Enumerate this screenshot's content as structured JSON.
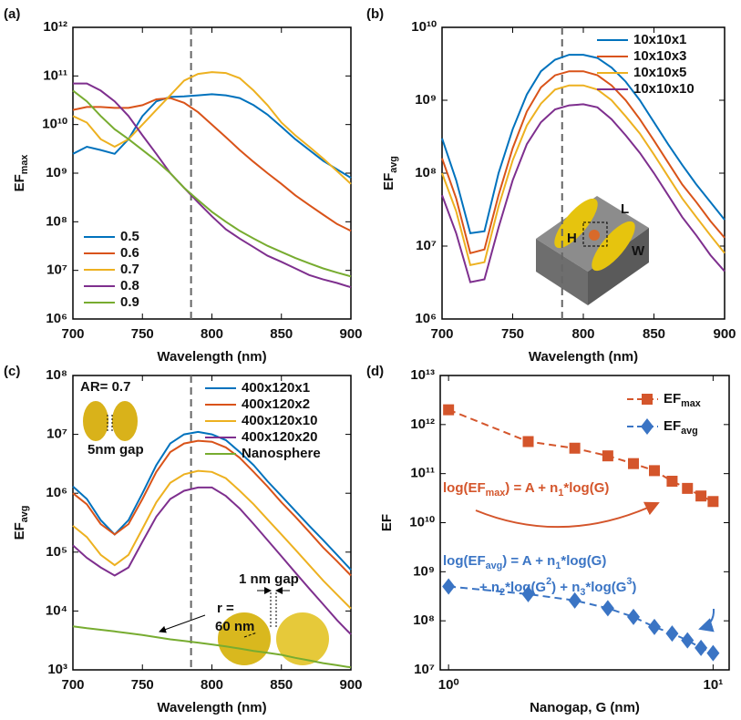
{
  "chart_data": [
    {
      "type": "line",
      "label": "(a)",
      "xlabel": "Wavelength (nm)",
      "ylabel": [
        "EF",
        {
          "sub": "max"
        }
      ],
      "ylog": true,
      "legend": "lower left",
      "xlim": [
        700,
        900
      ],
      "xticks": [
        700,
        750,
        800,
        850,
        900
      ],
      "ylim": [
        1000000.0,
        1000000000000.0
      ],
      "yticks": [
        {
          "value": 1000000.0,
          "label": "10⁶"
        },
        {
          "value": 10000000.0,
          "label": "10⁷"
        },
        {
          "value": 100000000.0,
          "label": "10⁸"
        },
        {
          "value": 1000000000.0,
          "label": "10⁹"
        },
        {
          "value": 10000000000.0,
          "label": "10¹⁰"
        },
        {
          "value": 100000000000.0,
          "label": "10¹¹"
        },
        {
          "value": 1000000000000.0,
          "label": "10¹²"
        }
      ],
      "vline": 785,
      "x": [
        700,
        710,
        720,
        730,
        740,
        750,
        760,
        770,
        780,
        790,
        800,
        810,
        820,
        830,
        840,
        850,
        860,
        870,
        880,
        890,
        900
      ],
      "series": [
        {
          "name": "0.5",
          "color": "#0072BD",
          "values": [
            2500000000.0,
            3500000000.0,
            3000000000.0,
            2500000000.0,
            5000000000.0,
            15000000000.0,
            30000000000.0,
            37000000000.0,
            38000000000.0,
            40000000000.0,
            42000000000.0,
            40000000000.0,
            35000000000.0,
            25000000000.0,
            16000000000.0,
            9000000000.0,
            5000000000.0,
            3000000000.0,
            1800000000.0,
            1200000000.0,
            800000000.0
          ]
        },
        {
          "name": "0.6",
          "color": "#D95319",
          "values": [
            20000000000.0,
            23000000000.0,
            23000000000.0,
            22000000000.0,
            22000000000.0,
            25000000000.0,
            33000000000.0,
            35000000000.0,
            28000000000.0,
            18000000000.0,
            10000000000.0,
            5500000000.0,
            3000000000.0,
            1700000000.0,
            1000000000.0,
            600000000.0,
            350000000.0,
            220000000.0,
            140000000.0,
            90000000.0,
            65000000.0
          ]
        },
        {
          "name": "0.7",
          "color": "#EDB120",
          "values": [
            15000000000.0,
            11000000000.0,
            5000000000.0,
            3500000000.0,
            5000000000.0,
            10000000000.0,
            20000000000.0,
            40000000000.0,
            80000000000.0,
            110000000000.0,
            120000000000.0,
            115000000000.0,
            90000000000.0,
            50000000000.0,
            25000000000.0,
            11000000000.0,
            6000000000.0,
            3500000000.0,
            2000000000.0,
            1100000000.0,
            600000000.0
          ]
        },
        {
          "name": "0.8",
          "color": "#7E2F8E",
          "values": [
            70000000000.0,
            70000000000.0,
            50000000000.0,
            30000000000.0,
            15000000000.0,
            6000000000.0,
            2500000000.0,
            1000000000.0,
            500000000.0,
            250000000.0,
            130000000.0,
            70000000.0,
            45000000.0,
            30000000.0,
            20000000.0,
            15000000.0,
            11000000.0,
            8000000.0,
            6500000.0,
            5500000.0,
            4500000.0
          ]
        },
        {
          "name": "0.9",
          "color": "#77AC30",
          "values": [
            50000000000.0,
            30000000000.0,
            15000000000.0,
            8000000000.0,
            5000000000.0,
            3000000000.0,
            1800000000.0,
            1000000000.0,
            500000000.0,
            280000000.0,
            160000000.0,
            100000000.0,
            65000000.0,
            45000000.0,
            32000000.0,
            24000000.0,
            18000000.0,
            14000000.0,
            11000000.0,
            9000000.0,
            7500000.0
          ]
        }
      ]
    },
    {
      "type": "line",
      "label": "(b)",
      "xlabel": "Wavelength (nm)",
      "ylabel": [
        "EF",
        {
          "sub": "avg"
        }
      ],
      "ylog": true,
      "legend": "upper right",
      "xlim": [
        700,
        900
      ],
      "xticks": [
        700,
        750,
        800,
        850,
        900
      ],
      "ylim": [
        1000000.0,
        10000000000.0
      ],
      "yticks": [
        {
          "value": 1000000.0,
          "label": "10⁶"
        },
        {
          "value": 10000000.0,
          "label": "10⁷"
        },
        {
          "value": 100000000.0,
          "label": "10⁸"
        },
        {
          "value": 1000000000.0,
          "label": "10⁹"
        },
        {
          "value": 10000000000.0,
          "label": "10¹⁰"
        }
      ],
      "vline": 785,
      "annotations": [
        "L",
        "H",
        "W"
      ],
      "x": [
        700,
        710,
        720,
        730,
        740,
        750,
        760,
        770,
        780,
        790,
        800,
        810,
        820,
        830,
        840,
        850,
        860,
        870,
        880,
        890,
        900
      ],
      "series": [
        {
          "name": "10x10x1",
          "color": "#0072BD",
          "values": [
            300000000.0,
            80000000.0,
            15000000.0,
            16000000.0,
            100000000.0,
            400000000.0,
            1200000000.0,
            2500000000.0,
            3600000000.0,
            4200000000.0,
            4200000000.0,
            3800000000.0,
            2800000000.0,
            1800000000.0,
            1000000000.0,
            500000000.0,
            250000000.0,
            130000000.0,
            70000000.0,
            40000000.0,
            23000000.0
          ]
        },
        {
          "name": "10x10x3",
          "color": "#D95319",
          "values": [
            160000000.0,
            45000000.0,
            8000000.0,
            9000000.0,
            50000000.0,
            220000000.0,
            700000000.0,
            1500000000.0,
            2200000000.0,
            2500000000.0,
            2500000000.0,
            2200000000.0,
            1600000000.0,
            1000000000.0,
            550000000.0,
            280000000.0,
            140000000.0,
            70000000.0,
            40000000.0,
            22000000.0,
            13000000.0
          ]
        },
        {
          "name": "10x10x5",
          "color": "#EDB120",
          "values": [
            100000000.0,
            30000000.0,
            5500000.0,
            6000000.0,
            35000000.0,
            150000000.0,
            450000000.0,
            900000000.0,
            1400000000.0,
            1600000000.0,
            1600000000.0,
            1400000000.0,
            1000000000.0,
            600000000.0,
            350000000.0,
            180000000.0,
            90000000.0,
            45000000.0,
            25000000.0,
            14000000.0,
            8000000.0
          ]
        },
        {
          "name": "10x10x10",
          "color": "#7E2F8E",
          "values": [
            50000000.0,
            15000000.0,
            3200000.0,
            3500000.0,
            18000000.0,
            80000000.0,
            250000000.0,
            500000000.0,
            750000000.0,
            850000000.0,
            880000000.0,
            800000000.0,
            550000000.0,
            330000000.0,
            190000000.0,
            100000000.0,
            50000000.0,
            25000000.0,
            14000000.0,
            7500000.0,
            4500000.0
          ]
        }
      ]
    },
    {
      "type": "line",
      "label": "(c)",
      "xlabel": "Wavelength (nm)",
      "ylabel": [
        "EF",
        {
          "sub": "avg"
        }
      ],
      "ylog": true,
      "legend": "upper right",
      "xlim": [
        700,
        900
      ],
      "xticks": [
        700,
        750,
        800,
        850,
        900
      ],
      "ylim": [
        1000.0,
        100000000.0
      ],
      "yticks": [
        {
          "value": 1000.0,
          "label": "10³"
        },
        {
          "value": 10000.0,
          "label": "10⁴"
        },
        {
          "value": 100000.0,
          "label": "10⁵"
        },
        {
          "value": 1000000.0,
          "label": "10⁶"
        },
        {
          "value": 10000000.0,
          "label": "10⁷"
        },
        {
          "value": 100000000.0,
          "label": "10⁸"
        }
      ],
      "vline": 785,
      "annotations": [
        "AR=  0.7",
        "5nm gap",
        "1 nm gap",
        "r =",
        "60 nm"
      ],
      "x": [
        700,
        710,
        720,
        730,
        740,
        750,
        760,
        770,
        780,
        790,
        800,
        810,
        820,
        830,
        840,
        850,
        860,
        870,
        880,
        890,
        900
      ],
      "series": [
        {
          "name": "400x120x1",
          "color": "#0072BD",
          "values": [
            1300000.0,
            800000.0,
            350000.0,
            200000.0,
            350000.0,
            1000000.0,
            3000000.0,
            7000000.0,
            10000000.0,
            11000000.0,
            10000000.0,
            8000000.0,
            5000000.0,
            3000000.0,
            1600000.0,
            900000.0,
            500000.0,
            280000.0,
            160000.0,
            90000.0,
            50000.0
          ]
        },
        {
          "name": "400x120x2",
          "color": "#D95319",
          "values": [
            1000000.0,
            650000.0,
            300000.0,
            200000.0,
            300000.0,
            800000.0,
            2300000.0,
            5000000.0,
            7000000.0,
            7800000.0,
            7500000.0,
            6000000.0,
            4000000.0,
            2300000.0,
            1300000.0,
            700000.0,
            400000.0,
            220000.0,
            120000.0,
            70000.0,
            40000.0
          ]
        },
        {
          "name": "400x120x10",
          "color": "#EDB120",
          "values": [
            280000.0,
            180000.0,
            90000.0,
            60000.0,
            90000.0,
            250000.0,
            700000.0,
            1500000.0,
            2100000.0,
            2400000.0,
            2300000.0,
            1800000.0,
            1100000.0,
            650000.0,
            360000.0,
            200000.0,
            110000.0,
            60000.0,
            33000.0,
            19000.0,
            11000.0
          ]
        },
        {
          "name": "400x120x20",
          "color": "#7E2F8E",
          "values": [
            130000.0,
            80000.0,
            55000.0,
            40000.0,
            55000.0,
            150000.0,
            400000.0,
            800000.0,
            1100000.0,
            1250000.0,
            1250000.0,
            900000.0,
            550000.0,
            300000.0,
            160000.0,
            85000.0,
            45000.0,
            24000.0,
            13000.0,
            7000.0,
            4000.0
          ]
        },
        {
          "name": "Nanosphere",
          "color": "#77AC30",
          "values": [
            5500.0,
            5100.0,
            4800.0,
            4500.0,
            4200.0,
            3900.0,
            3600.0,
            3300.0,
            3100.0,
            2900.0,
            2700.0,
            2500.0,
            2300.0,
            2100.0,
            1950.0,
            1800.0,
            1600.0,
            1450.0,
            1300.0,
            1200.0,
            1100.0
          ]
        }
      ]
    },
    {
      "type": "scatter",
      "label": "(d)",
      "xlabel": "Nanogap, G (nm)",
      "ylabel": "EF",
      "ylog": true,
      "xlog": true,
      "legend": "upper right",
      "xlim": [
        0.93,
        11.5
      ],
      "xticks": [
        {
          "value": 1,
          "label": "10⁰"
        },
        {
          "value": 10,
          "label": "10¹"
        }
      ],
      "ylim": [
        10000000.0,
        10000000000000.0
      ],
      "yticks": [
        {
          "value": 10000000.0,
          "label": "10⁷"
        },
        {
          "value": 100000000.0,
          "label": "10⁸"
        },
        {
          "value": 1000000000.0,
          "label": "10⁹"
        },
        {
          "value": 10000000000.0,
          "label": "10¹⁰"
        },
        {
          "value": 100000000000.0,
          "label": "10¹¹"
        },
        {
          "value": 1000000000000.0,
          "label": "10¹²"
        },
        {
          "value": 10000000000000.0,
          "label": "10¹³"
        }
      ],
      "annotations": [
        [
          "log(EF",
          {
            "sub": "max"
          },
          ") = A + n",
          {
            "sub": "1"
          },
          "*log(G)"
        ],
        [
          "log(EF",
          {
            "sub": "avg"
          },
          ") = A + n",
          {
            "sub": "1"
          },
          "*log(G)"
        ],
        [
          "+ n",
          {
            "sub": "2"
          },
          "*log(G",
          {
            "sup": "2"
          },
          ") + n",
          {
            "sub": "3"
          },
          "*log(G",
          {
            "sup": "3"
          },
          ")"
        ]
      ],
      "x": [
        1,
        2,
        3,
        4,
        5,
        6,
        7,
        8,
        9,
        10
      ],
      "series": [
        {
          "name": [
            "EF",
            {
              "sub": "max"
            }
          ],
          "color": "#D4552B",
          "marker": "square",
          "values": [
            2000000000000.0,
            450000000000.0,
            330000000000.0,
            230000000000.0,
            160000000000.0,
            115000000000.0,
            70000000000.0,
            50000000000.0,
            35000000000.0,
            27000000000.0
          ]
        },
        {
          "name": [
            "EF",
            {
              "sub": "avg"
            }
          ],
          "color": "#3A74C4",
          "marker": "diamond",
          "values": [
            500000000.0,
            350000000.0,
            260000000.0,
            180000000.0,
            120000000.0,
            75000000.0,
            55000000.0,
            40000000.0,
            28000000.0,
            22000000.0
          ]
        }
      ]
    }
  ]
}
